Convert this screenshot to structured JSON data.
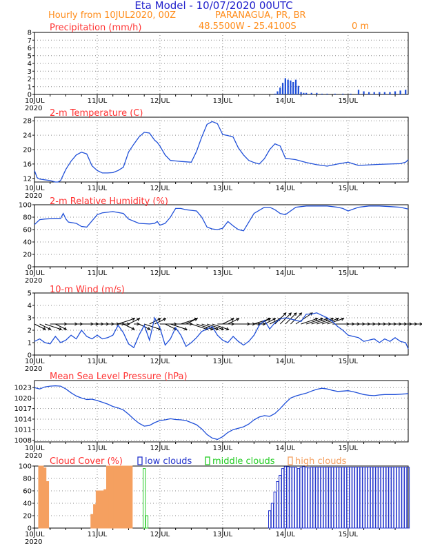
{
  "header": {
    "title": "Eta Model - 10/07/2020 00UTC",
    "subtitle": "Hourly from 10JUL2020, 00Z",
    "location": "PARANAGUA, PR, BR",
    "coords": "48.5500W - 25.4100S",
    "elevation": "0 m"
  },
  "colors": {
    "title": "#2222cc",
    "subtitle": "#ff8c1a",
    "panel_title": "#ff3333",
    "line": "#1f4fd8",
    "low_clouds": "#2233cc",
    "middle_clouds": "#22cc22",
    "high_clouds": "#f5a060",
    "wind_arrow": "#000000"
  },
  "chart_data": [
    {
      "type": "bar",
      "title": "Precipitation (mm/h)",
      "xlabel": "",
      "ylabel": "",
      "ylim": [
        0,
        8
      ],
      "yticks": [
        0,
        1,
        2,
        3,
        4,
        5,
        6,
        7,
        8
      ],
      "xticks": [
        "10JUL",
        "11JUL",
        "12JUL",
        "13JUL",
        "14JUL",
        "15JUL"
      ],
      "xyear": "2020",
      "x": [
        92,
        93,
        94,
        95,
        96,
        97,
        98,
        99,
        100,
        101,
        102,
        103,
        104,
        106,
        108,
        110,
        112,
        115,
        118,
        121,
        124,
        126,
        128,
        130,
        132,
        134,
        136,
        138,
        140,
        142
      ],
      "values": [
        0.1,
        0.4,
        0.9,
        1.5,
        2.1,
        1.9,
        1.8,
        1.6,
        1.9,
        1.1,
        0.3,
        0.2,
        0.2,
        0.2,
        0.2,
        0.1,
        0.1,
        0.1,
        0.1,
        0.1,
        0.6,
        0.4,
        0.3,
        0.3,
        0.3,
        0.3,
        0.3,
        0.4,
        0.5,
        0.6
      ]
    },
    {
      "type": "line",
      "title": "2-m Temperature (C)",
      "ylim": [
        11,
        29
      ],
      "yticks": [
        12,
        16,
        20,
        24,
        28
      ],
      "xticks": [
        "10JUL",
        "11JUL",
        "12JUL",
        "13JUL",
        "14JUL",
        "15JUL"
      ],
      "xyear": "2020",
      "x": [
        0,
        1,
        2,
        4,
        6,
        8,
        9,
        10,
        12,
        14,
        16,
        18,
        20,
        22,
        24,
        26,
        28,
        30,
        32,
        34,
        36,
        38,
        40,
        42,
        44,
        46,
        47,
        48,
        50,
        52,
        56,
        60,
        62,
        64,
        66,
        68,
        70,
        72,
        74,
        76,
        78,
        80,
        82,
        84,
        86,
        88,
        90,
        92,
        94,
        96,
        100,
        104,
        108,
        112,
        116,
        120,
        124,
        132,
        140,
        142,
        143
      ],
      "values": [
        14.2,
        12.2,
        11.8,
        11.6,
        11.4,
        11.0,
        11.0,
        11.4,
        14.5,
        16.8,
        18.5,
        19.3,
        18.8,
        15.5,
        14.2,
        13.5,
        13.5,
        13.6,
        14.2,
        15.1,
        19.3,
        21.5,
        23.5,
        24.8,
        24.6,
        22.6,
        22.0,
        21.0,
        18.5,
        17.0,
        16.7,
        16.5,
        19.5,
        23.5,
        27.0,
        27.8,
        27.2,
        24.2,
        23.9,
        23.5,
        20.5,
        18.5,
        17.0,
        16.4,
        16.0,
        17.5,
        20.0,
        21.6,
        21.0,
        17.6,
        17.2,
        16.4,
        15.8,
        15.4,
        16.0,
        16.5,
        15.6,
        15.9,
        16.1,
        16.5,
        17.2
      ]
    },
    {
      "type": "line",
      "title": "2-m Relative Humidity (%)",
      "ylim": [
        0,
        100
      ],
      "yticks": [
        0,
        20,
        40,
        60,
        80,
        100
      ],
      "xticks": [
        "10JUL",
        "11JUL",
        "12JUL",
        "13JUL",
        "14JUL",
        "15JUL"
      ],
      "xyear": "2020",
      "x": [
        0,
        1,
        2,
        4,
        8,
        10,
        11,
        12,
        13,
        16,
        18,
        20,
        24,
        26,
        30,
        34,
        36,
        40,
        44,
        46,
        47,
        48,
        50,
        52,
        54,
        56,
        58,
        60,
        62,
        64,
        66,
        68,
        70,
        72,
        74,
        76,
        78,
        80,
        84,
        88,
        90,
        92,
        94,
        96,
        100,
        104,
        108,
        112,
        116,
        118,
        120,
        124,
        128,
        132,
        136,
        140,
        142,
        143
      ],
      "values": [
        68,
        72,
        76,
        77,
        78,
        78,
        86,
        77,
        72,
        70,
        65,
        64,
        84,
        87,
        89,
        86,
        77,
        70,
        69,
        70,
        73,
        67,
        70,
        80,
        94,
        94,
        92,
        91,
        90,
        80,
        64,
        61,
        60,
        62,
        73,
        66,
        60,
        58,
        86,
        96,
        96,
        92,
        86,
        84,
        96,
        98,
        98,
        98,
        96,
        94,
        90,
        96,
        98,
        98,
        97,
        96,
        94,
        93
      ]
    },
    {
      "type": "line",
      "title": "10-m Wind (m/s)",
      "ylim": [
        0,
        5
      ],
      "yticks": [
        0,
        1,
        2,
        3,
        4,
        5
      ],
      "xticks": [
        "10JUL",
        "11JUL",
        "12JUL",
        "13JUL",
        "14JUL",
        "15JUL"
      ],
      "xyear": "2020",
      "x": [
        0,
        2,
        4,
        6,
        8,
        10,
        12,
        14,
        16,
        18,
        20,
        22,
        24,
        26,
        28,
        30,
        32,
        34,
        36,
        38,
        40,
        42,
        44,
        46,
        48,
        50,
        52,
        54,
        56,
        58,
        60,
        62,
        64,
        66,
        68,
        70,
        72,
        74,
        76,
        78,
        80,
        82,
        84,
        86,
        88,
        90,
        92,
        94,
        96,
        98,
        100,
        102,
        104,
        106,
        108,
        110,
        112,
        114,
        116,
        118,
        120,
        122,
        124,
        126,
        128,
        130,
        132,
        134,
        136,
        138,
        140,
        142,
        143
      ],
      "values": [
        1.1,
        1.3,
        1.0,
        0.9,
        1.5,
        1.0,
        1.2,
        1.6,
        1.3,
        2.0,
        1.5,
        1.3,
        1.6,
        1.3,
        1.4,
        1.6,
        2.4,
        1.8,
        0.9,
        0.6,
        1.6,
        2.4,
        1.2,
        3.0,
        2.2,
        0.8,
        1.3,
        2.2,
        1.6,
        0.7,
        1.0,
        1.4,
        1.9,
        2.1,
        2.3,
        1.6,
        1.2,
        1.0,
        1.5,
        1.1,
        0.8,
        1.1,
        1.6,
        2.4,
        2.8,
        2.1,
        2.6,
        2.9,
        3.0,
        2.9,
        2.8,
        2.7,
        3.3,
        3.3,
        3.4,
        3.2,
        3.0,
        2.7,
        2.3,
        2.0,
        1.6,
        1.5,
        1.4,
        1.1,
        1.2,
        1.3,
        1.0,
        1.3,
        1.1,
        1.4,
        1.1,
        1.0,
        0.5
      ],
      "arrows": {
        "note": "Wind direction vectors (dx, dy in m/s) at the given hours, plotted at y=2.5",
        "x": [
          0,
          2,
          4,
          6,
          8,
          10,
          12,
          14,
          16,
          18,
          20,
          22,
          24,
          26,
          28,
          30,
          32,
          34,
          36,
          38,
          40,
          42,
          44,
          46,
          48,
          50,
          52,
          54,
          56,
          58,
          60,
          62,
          64,
          66,
          68,
          70,
          72,
          74,
          76,
          78,
          80,
          82,
          84,
          86,
          88,
          90,
          92,
          94,
          96,
          98,
          100,
          102,
          104,
          106,
          108,
          110,
          112,
          114,
          116,
          118,
          120,
          122,
          124,
          126,
          128,
          130,
          132,
          134,
          136,
          138,
          140,
          142
        ],
        "dx": [
          2,
          2,
          3,
          3,
          2,
          3,
          3,
          4,
          4,
          3,
          3,
          3,
          3,
          3,
          3,
          3,
          3,
          2,
          2,
          1,
          2,
          3,
          2,
          2,
          3,
          2,
          3,
          3,
          3,
          2,
          3,
          3,
          3,
          3,
          3,
          3,
          2,
          2,
          3,
          3,
          3,
          3,
          3,
          2,
          2,
          2,
          2,
          2,
          2,
          2,
          3,
          3,
          3,
          3,
          3,
          3,
          3,
          3,
          3,
          3,
          3,
          3,
          3,
          3,
          3,
          3,
          3,
          3,
          3,
          3,
          3,
          3
        ],
        "dy": [
          -1,
          -1,
          -1,
          0,
          -1,
          0,
          0,
          0,
          0,
          0,
          0,
          0,
          0,
          0,
          0,
          0,
          1,
          -1,
          1,
          0,
          -1,
          -1,
          1,
          1,
          0,
          -1,
          -1,
          0,
          1,
          1,
          -1,
          -1,
          -1,
          -1,
          -1,
          0,
          1,
          1,
          0,
          0,
          0,
          0,
          1,
          1,
          1,
          1,
          2,
          2,
          2,
          2,
          2,
          1,
          1,
          1,
          1,
          1,
          1,
          0,
          0,
          0,
          0,
          0,
          0,
          0,
          0,
          0,
          0,
          0,
          0,
          0,
          0,
          0
        ]
      }
    },
    {
      "type": "line",
      "title": "Mean Sea Level Pressure (hPa)",
      "ylim": [
        1007.5,
        1025
      ],
      "yticks": [
        1008,
        1011,
        1014,
        1017,
        1020,
        1023
      ],
      "xticks": [
        "10JUL",
        "11JUL",
        "12JUL",
        "13JUL",
        "14JUL",
        "15JUL"
      ],
      "xyear": "2020",
      "x": [
        0,
        2,
        4,
        6,
        8,
        10,
        12,
        14,
        16,
        18,
        20,
        22,
        24,
        26,
        28,
        30,
        32,
        34,
        36,
        38,
        40,
        42,
        44,
        46,
        48,
        50,
        52,
        54,
        56,
        58,
        60,
        62,
        64,
        66,
        68,
        70,
        72,
        74,
        76,
        78,
        80,
        82,
        84,
        86,
        88,
        90,
        92,
        94,
        96,
        98,
        100,
        102,
        104,
        106,
        108,
        110,
        112,
        114,
        116,
        118,
        120,
        122,
        124,
        126,
        128,
        130,
        132,
        134,
        136,
        138,
        140,
        142,
        143
      ],
      "values": [
        1023.0,
        1022.6,
        1023.2,
        1023.4,
        1023.5,
        1023.4,
        1022.6,
        1021.5,
        1020.6,
        1020.0,
        1019.6,
        1019.7,
        1019.3,
        1018.8,
        1018.3,
        1017.6,
        1017.2,
        1016.6,
        1015.4,
        1014.0,
        1012.8,
        1012.0,
        1012.2,
        1013.0,
        1013.6,
        1013.8,
        1014.1,
        1013.9,
        1013.8,
        1013.6,
        1013.0,
        1012.4,
        1011.2,
        1009.6,
        1008.6,
        1008.2,
        1009.0,
        1010.2,
        1011.0,
        1011.4,
        1011.8,
        1012.6,
        1013.8,
        1014.6,
        1015.0,
        1014.8,
        1015.6,
        1017.0,
        1018.6,
        1020.0,
        1020.6,
        1021.0,
        1021.4,
        1022.0,
        1022.5,
        1022.8,
        1022.6,
        1022.2,
        1021.9,
        1022.0,
        1022.1,
        1021.8,
        1021.4,
        1021.0,
        1020.8,
        1020.7,
        1020.9,
        1021.0,
        1021.0,
        1021.0,
        1021.1,
        1021.2,
        1021.3
      ]
    },
    {
      "type": "bar",
      "title": "Cloud Cover (%)",
      "ylim": [
        0,
        100
      ],
      "yticks": [
        0,
        20,
        40,
        60,
        80,
        100
      ],
      "xticks": [
        "10JUL",
        "11JUL",
        "12JUL",
        "13JUL",
        "14JUL",
        "15JUL"
      ],
      "xyear": "2020",
      "legend": [
        "low clouds",
        "middle clouds",
        "high clouds"
      ],
      "series": [
        {
          "name": "high clouds",
          "x": [
            2,
            3,
            4,
            5,
            22,
            23,
            24,
            25,
            26,
            27,
            28,
            29,
            30,
            31,
            32,
            33,
            34,
            35,
            36,
            37
          ],
          "values": [
            100,
            100,
            97,
            75,
            22,
            38,
            60,
            60,
            60,
            62,
            100,
            100,
            100,
            100,
            100,
            100,
            100,
            100,
            100,
            100
          ]
        },
        {
          "name": "middle clouds",
          "x": [
            42,
            43
          ],
          "values": [
            96,
            20
          ]
        },
        {
          "name": "low clouds",
          "x": [
            90,
            91,
            92,
            93,
            94,
            95,
            96,
            97,
            98,
            99,
            100,
            101,
            102,
            103,
            104,
            105,
            106,
            107,
            108,
            109,
            110,
            111,
            112,
            113,
            114,
            115,
            116,
            117,
            118,
            119,
            120,
            121,
            122,
            123,
            124,
            125,
            126,
            127,
            128,
            129,
            130,
            131,
            132,
            133,
            134,
            135,
            136,
            137,
            138,
            139,
            140,
            141,
            142,
            143
          ],
          "values": [
            28,
            40,
            58,
            75,
            85,
            96,
            99,
            99,
            98,
            98,
            98,
            96,
            98,
            99,
            98,
            97,
            98,
            98,
            98,
            98,
            98,
            98,
            98,
            98,
            98,
            98,
            98,
            98,
            98,
            98,
            98,
            98,
            98,
            98,
            98,
            98,
            98,
            98,
            98,
            98,
            98,
            98,
            98,
            98,
            98,
            98,
            98,
            98,
            98,
            98,
            98,
            98,
            98,
            98
          ]
        }
      ]
    }
  ]
}
